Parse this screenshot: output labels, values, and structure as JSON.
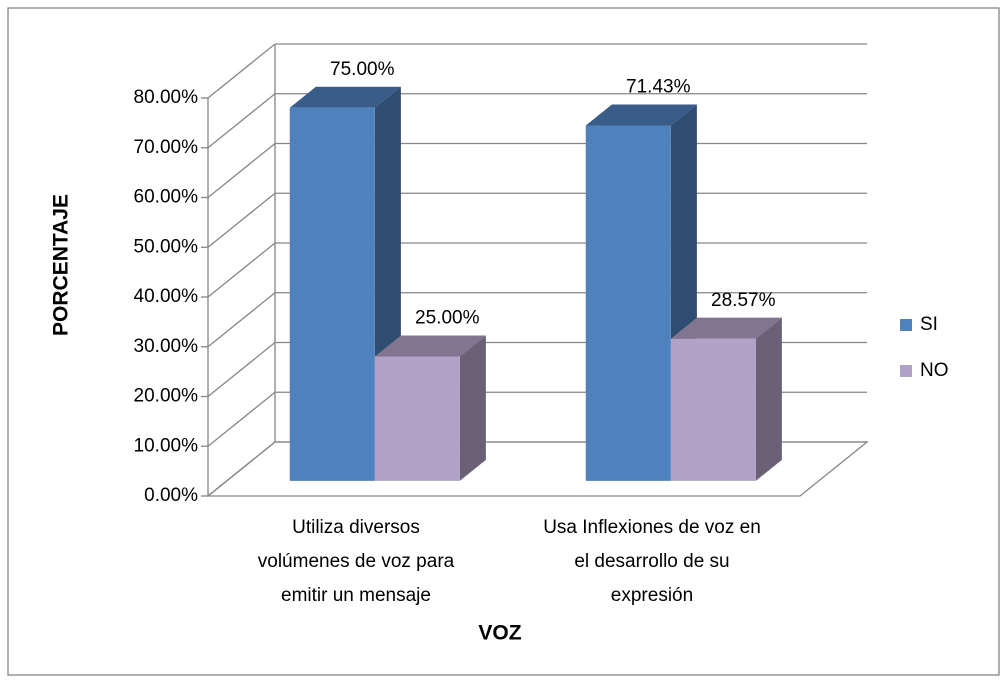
{
  "chart_data": {
    "type": "bar3d",
    "y_label": "PORCENTAJE",
    "x_label": "VOZ",
    "categories": [
      [
        "Utiliza diversos",
        "volúmenes de voz para",
        "emitir un mensaje"
      ],
      [
        "Usa Inflexiones de voz en",
        "el  desarrollo de su",
        "expresión"
      ]
    ],
    "series": [
      {
        "name": "SI",
        "color": "#4f81bd",
        "values": [
          75,
          71.43
        ],
        "value_labels": [
          "75.00%",
          "71.43%"
        ]
      },
      {
        "name": "NO",
        "color": "#b3a2c7",
        "values": [
          25,
          28.57
        ],
        "value_labels": [
          "25.00%",
          "28.57%"
        ]
      }
    ],
    "ylim": [
      0,
      80
    ],
    "yticks": [
      {
        "value": 0,
        "label": "0.00%"
      },
      {
        "value": 10,
        "label": "10.00%"
      },
      {
        "value": 20,
        "label": "20.00%"
      },
      {
        "value": 30,
        "label": "30.00%"
      },
      {
        "value": 40,
        "label": "40.00%"
      },
      {
        "value": 50,
        "label": "50.00%"
      },
      {
        "value": 60,
        "label": "60.00%"
      },
      {
        "value": 70,
        "label": "70.00%"
      },
      {
        "value": 80,
        "label": "80.00%"
      }
    ],
    "grid": true,
    "legend": "right"
  }
}
